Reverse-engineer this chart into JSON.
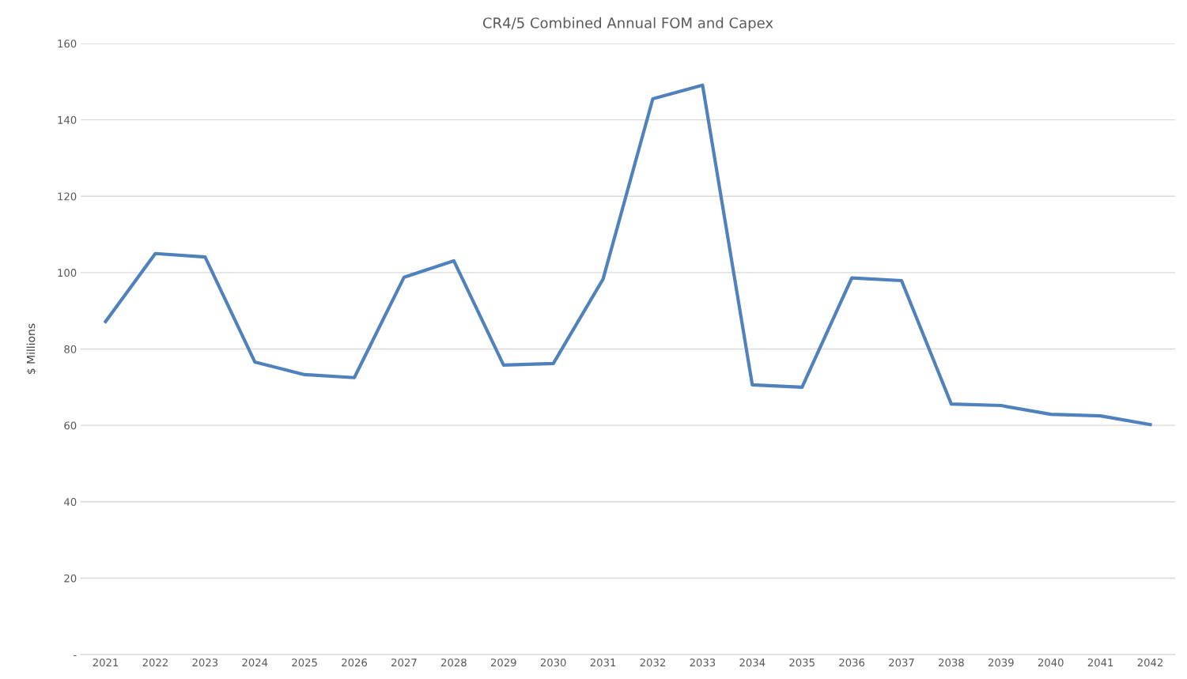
{
  "chart_data": {
    "type": "line",
    "title": "CR4/5 Combined Annual FOM and Capex",
    "ylabel": "$ Millions",
    "categories": [
      "2021",
      "2022",
      "2023",
      "2024",
      "2025",
      "2026",
      "2027",
      "2028",
      "2029",
      "2030",
      "2031",
      "2032",
      "2033",
      "2034",
      "2035",
      "2036",
      "2037",
      "2038",
      "2039",
      "2040",
      "2041",
      "2042"
    ],
    "series": [
      {
        "color": "#4f81bd",
        "values": [
          87.2,
          105.0,
          104.1,
          76.6,
          73.3,
          72.5,
          98.8,
          103.1,
          75.8,
          76.2,
          98.3,
          145.5,
          149.1,
          70.6,
          70.0,
          98.6,
          97.9,
          65.6,
          65.2,
          62.9,
          62.5,
          60.2
        ]
      }
    ],
    "ylim": [
      0,
      160
    ],
    "yticks": [
      {
        "value": 0,
        "label": "-"
      },
      20,
      40,
      60,
      80,
      100,
      120,
      140,
      160
    ],
    "grid": "y",
    "legend": false,
    "marker": "none",
    "line_style": "solid"
  }
}
